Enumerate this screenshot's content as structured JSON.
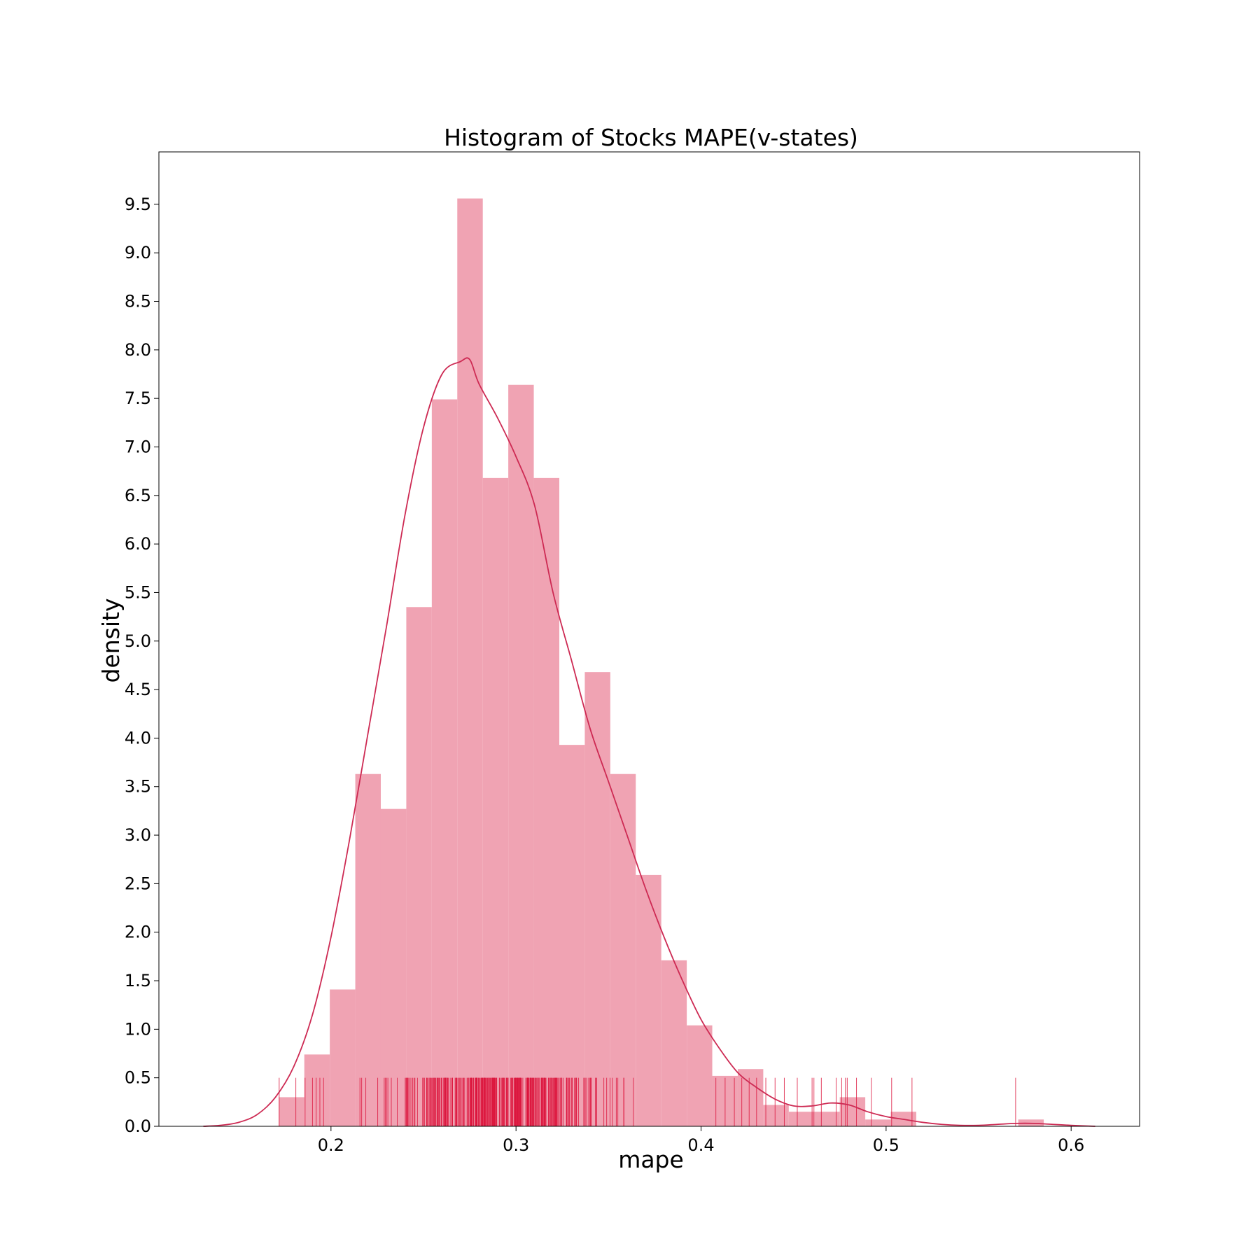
{
  "chart_data": {
    "type": "bar",
    "title": "Histogram of Stocks MAPE(v-states)",
    "xlabel": "mape",
    "ylabel": "density",
    "xlim": [
      0.107,
      0.637
    ],
    "ylim": [
      0,
      10.04
    ],
    "xticks": [
      "0.2",
      "0.3",
      "0.4",
      "0.5",
      "0.6"
    ],
    "xtick_values": [
      0.2,
      0.3,
      0.4,
      0.5,
      0.6
    ],
    "yticks": [
      "0.0",
      "0.5",
      "1.0",
      "1.5",
      "2.0",
      "2.5",
      "3.0",
      "3.5",
      "4.0",
      "4.5",
      "5.0",
      "5.5",
      "6.0",
      "6.5",
      "7.0",
      "7.5",
      "8.0",
      "8.5",
      "9.0",
      "9.5"
    ],
    "ytick_values": [
      0.0,
      0.5,
      1.0,
      1.5,
      2.0,
      2.5,
      3.0,
      3.5,
      4.0,
      4.5,
      5.0,
      5.5,
      6.0,
      6.5,
      7.0,
      7.5,
      8.0,
      8.5,
      9.0,
      9.5
    ],
    "grid": false,
    "bar_color": "#f0a3b3",
    "kde_color": "#cd2a53",
    "rug_color": "#dc143c",
    "bins": {
      "start": 0.1718,
      "width": 0.01378,
      "densities": [
        0.3,
        0.74,
        1.41,
        3.63,
        3.27,
        5.35,
        7.49,
        9.56,
        6.68,
        7.64,
        6.68,
        3.93,
        4.68,
        3.63,
        2.59,
        1.71,
        1.04,
        0.52,
        0.59,
        0.22,
        0.15,
        0.15,
        0.3,
        0.07,
        0.15,
        0,
        0,
        0,
        0,
        0.07
      ]
    },
    "kde": {
      "x": [
        0.131,
        0.14,
        0.15,
        0.16,
        0.17,
        0.18,
        0.19,
        0.2,
        0.21,
        0.22,
        0.23,
        0.24,
        0.25,
        0.26,
        0.27,
        0.275,
        0.28,
        0.29,
        0.3,
        0.31,
        0.32,
        0.33,
        0.34,
        0.35,
        0.36,
        0.37,
        0.38,
        0.39,
        0.4,
        0.41,
        0.42,
        0.43,
        0.44,
        0.45,
        0.46,
        0.47,
        0.48,
        0.49,
        0.5,
        0.51,
        0.52,
        0.53,
        0.54,
        0.55,
        0.56,
        0.57,
        0.58,
        0.59,
        0.6,
        0.613
      ],
      "y": [
        0.0,
        0.01,
        0.04,
        0.12,
        0.3,
        0.62,
        1.15,
        1.95,
        2.95,
        4.05,
        5.15,
        6.3,
        7.2,
        7.75,
        7.88,
        7.9,
        7.65,
        7.3,
        6.9,
        6.4,
        5.5,
        4.8,
        4.1,
        3.55,
        3.0,
        2.45,
        1.95,
        1.5,
        1.1,
        0.8,
        0.55,
        0.4,
        0.28,
        0.21,
        0.21,
        0.24,
        0.22,
        0.15,
        0.1,
        0.07,
        0.04,
        0.02,
        0.01,
        0.01,
        0.02,
        0.03,
        0.03,
        0.02,
        0.01,
        0.0
      ]
    },
    "rug": {
      "height": 0.5,
      "dense_range": [
        0.2,
        0.405
      ],
      "values": [
        0.172,
        0.181,
        0.186,
        0.19,
        0.192,
        0.194,
        0.196,
        0.408,
        0.413,
        0.418,
        0.422,
        0.426,
        0.43,
        0.435,
        0.44,
        0.445,
        0.452,
        0.46,
        0.461,
        0.465,
        0.473,
        0.476,
        0.478,
        0.479,
        0.484,
        0.492,
        0.503,
        0.514,
        0.57
      ]
    }
  }
}
